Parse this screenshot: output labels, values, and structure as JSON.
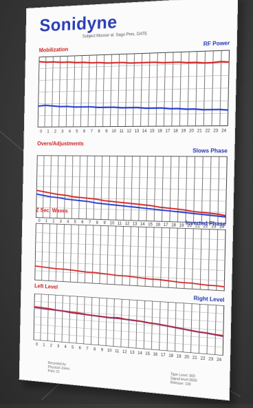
{
  "brand": "Sonidyne",
  "subheading": "Subject Mossor al. Sago Pres. DATE",
  "panels": [
    {
      "left_label": "Mobilization",
      "right_label": "RF Power",
      "series": [
        {
          "name": "red",
          "color": "#d42a2a",
          "values": [
            93,
            92,
            92,
            91,
            91,
            90,
            90,
            89,
            89,
            88,
            88,
            88,
            87,
            87,
            87,
            87,
            86,
            86,
            86,
            85,
            85,
            84,
            84,
            85,
            84
          ]
        },
        {
          "name": "blue",
          "color": "#2a3ed0",
          "values": [
            30,
            31,
            30,
            29,
            29,
            28,
            28,
            28,
            27,
            27,
            27,
            26,
            26,
            26,
            25,
            25,
            25,
            24,
            24,
            23,
            23,
            22,
            22,
            22,
            21
          ]
        }
      ]
    },
    {
      "left_label": "Overs/Adjustments",
      "right_label": "Slows Phase",
      "series": [
        {
          "name": "red",
          "color": "#d42a2a",
          "values": [
            44,
            42,
            40,
            38,
            37,
            35,
            34,
            33,
            32,
            30,
            29,
            28,
            27,
            26,
            25,
            24,
            22,
            21,
            20,
            19,
            17,
            16,
            15,
            14,
            12
          ]
        },
        {
          "name": "blue",
          "color": "#2a3ed0",
          "values": [
            38,
            36,
            34,
            33,
            31,
            30,
            29,
            28,
            26,
            25,
            24,
            23,
            22,
            21,
            20,
            19,
            18,
            17,
            16,
            15,
            14,
            13,
            12,
            11,
            10
          ]
        }
      ]
    },
    {
      "left_label": "Z Sec. Waves",
      "right_label": "Inverted Phase",
      "series": [
        {
          "name": "red",
          "color": "#d42a2a",
          "values": [
            25,
            24,
            23,
            22,
            22,
            21,
            20,
            19,
            19,
            18,
            17,
            16,
            16,
            15,
            14,
            13,
            13,
            12,
            11,
            10,
            10,
            9,
            8,
            8,
            7
          ]
        }
      ]
    },
    {
      "left_label": "Left Level",
      "right_label": "Right Level",
      "series": [
        {
          "name": "red",
          "color": "#d42a2a",
          "values": [
            72,
            71,
            70,
            68,
            67,
            66,
            65,
            63,
            62,
            61,
            60,
            61,
            59,
            58,
            57,
            55,
            54,
            52,
            50,
            48,
            46,
            44,
            43,
            41,
            40
          ]
        },
        {
          "name": "purple",
          "color": "#8a2a6a",
          "values": [
            70,
            69,
            68,
            67,
            66,
            64,
            63,
            62,
            61,
            60,
            59,
            59,
            58,
            57,
            56,
            54,
            53,
            51,
            49,
            47,
            45,
            43,
            42,
            40,
            38
          ]
        }
      ]
    }
  ],
  "ticks": [
    "0",
    "1",
    "2",
    "3",
    "4",
    "5",
    "6",
    "7",
    "8",
    "9",
    "10",
    "11",
    "12",
    "13",
    "14",
    "15",
    "16",
    "17",
    "18",
    "19",
    "20",
    "21",
    "22",
    "23",
    "24"
  ],
  "footer_left": "Recorded by\nPhysicist Jones\nPrint: 01",
  "footer_right": "Tape Level: 000\nSignal level 0000\nRelease: 100"
}
